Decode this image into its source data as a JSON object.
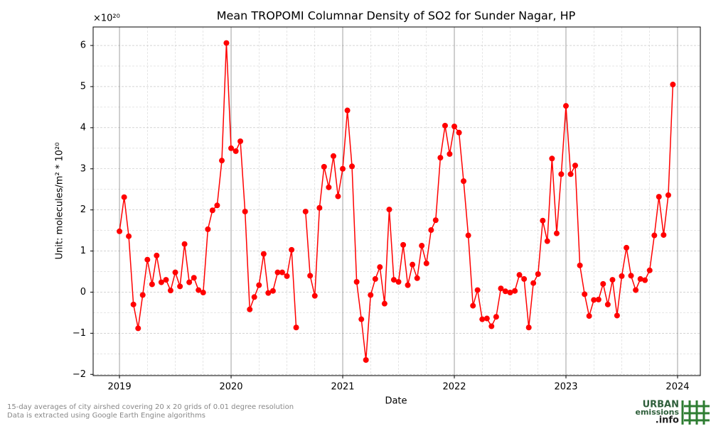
{
  "chart_data": {
    "type": "line",
    "title": "Mean TROPOMI Columnar Density of SO2 for Sunder Nagar, HP",
    "xlabel": "Date",
    "ylabel": "Unit: molecules/m² * 10²⁰",
    "y_offset_text": "×10²⁰",
    "footnote": [
      "15-day averages of city airshed covering 20 x 20 grids of 0.01 degree resolution",
      "Data is extracted using Google Earth Engine algorithms"
    ],
    "logo": [
      "URBAN",
      "emissions",
      ".info"
    ],
    "grid": true,
    "xlim": [
      2018.764,
      2024.204
    ],
    "xticks": [
      2019,
      2020,
      2021,
      2022,
      2023,
      2024
    ],
    "ylim": [
      -2.03,
      6.45
    ],
    "yticks": [
      {
        "value": -2,
        "label": "−2"
      },
      {
        "value": -1,
        "label": "−1"
      },
      0,
      1,
      2,
      3,
      4,
      5,
      6
    ],
    "x": [
      2019,
      2019.042,
      2019.083,
      2019.125,
      2019.167,
      2019.208,
      2019.25,
      2019.292,
      2019.333,
      2019.375,
      2019.417,
      2019.458,
      2019.5,
      2019.542,
      2019.583,
      2019.625,
      2019.667,
      2019.708,
      2019.75,
      2019.792,
      2019.833,
      2019.875,
      2019.917,
      2019.958,
      2020,
      2020.042,
      2020.083,
      2020.125,
      2020.167,
      2020.208,
      2020.25,
      2020.292,
      2020.333,
      2020.375,
      2020.417,
      2020.458,
      2020.5,
      2020.542,
      2020.583,
      2020.625,
      2020.667,
      2020.708,
      2020.75,
      2020.792,
      2020.833,
      2020.875,
      2020.917,
      2020.958,
      2021,
      2021.042,
      2021.083,
      2021.125,
      2021.167,
      2021.208,
      2021.25,
      2021.292,
      2021.333,
      2021.375,
      2021.417,
      2021.458,
      2021.5,
      2021.542,
      2021.583,
      2021.625,
      2021.667,
      2021.708,
      2021.75,
      2021.792,
      2021.833,
      2021.875,
      2021.917,
      2021.958,
      2022,
      2022.042,
      2022.083,
      2022.125,
      2022.167,
      2022.208,
      2022.25,
      2022.292,
      2022.333,
      2022.375,
      2022.417,
      2022.458,
      2022.5,
      2022.542,
      2022.583,
      2022.625,
      2022.667,
      2022.708,
      2022.75,
      2022.792,
      2022.833,
      2022.875,
      2022.917,
      2022.958,
      2023,
      2023.042,
      2023.083,
      2023.125,
      2023.167,
      2023.208,
      2023.25,
      2023.292,
      2023.333,
      2023.375,
      2023.417,
      2023.458,
      2023.5,
      2023.542,
      2023.583,
      2023.625,
      2023.667,
      2023.708,
      2023.75,
      2023.792,
      2023.833,
      2023.875,
      2023.917,
      2023.958
    ],
    "series": [
      {
        "color": "#ff0000",
        "values": [
          1.48,
          2.31,
          1.36,
          -0.3,
          -0.88,
          -0.07,
          0.79,
          0.19,
          0.89,
          0.24,
          0.3,
          0.04,
          0.48,
          0.14,
          1.17,
          0.24,
          0.35,
          0.05,
          -0.01,
          1.53,
          1.99,
          2.11,
          3.2,
          6.06,
          3.5,
          3.43,
          3.67,
          1.96,
          -0.42,
          -0.12,
          0.17,
          0.93,
          -0.02,
          0.03,
          0.48,
          0.48,
          0.39,
          1.03,
          -0.86,
          null,
          1.96,
          0.4,
          -0.09,
          2.05,
          3.05,
          2.55,
          3.31,
          2.33,
          3.0,
          4.42,
          3.06,
          0.25,
          -0.66,
          -1.65,
          -0.07,
          0.32,
          0.61,
          -0.28,
          2.01,
          0.3,
          0.25,
          1.15,
          0.17,
          0.67,
          0.34,
          1.13,
          0.7,
          1.51,
          1.75,
          3.27,
          4.05,
          3.36,
          4.03,
          3.88,
          2.7,
          1.38,
          -0.33,
          0.05,
          -0.66,
          -0.64,
          -0.83,
          -0.6,
          0.09,
          0.02,
          -0.01,
          0.03,
          0.42,
          0.32,
          -0.86,
          0.22,
          0.44,
          1.74,
          1.24,
          3.25,
          1.43,
          2.87,
          4.53,
          2.87,
          3.08,
          0.65,
          -0.05,
          -0.58,
          -0.19,
          -0.18,
          0.2,
          -0.3,
          0.3,
          -0.57,
          0.39,
          1.08,
          0.4,
          0.05,
          0.32,
          0.29,
          0.53,
          1.38,
          2.32,
          1.39,
          2.36,
          5.05
        ]
      }
    ]
  }
}
